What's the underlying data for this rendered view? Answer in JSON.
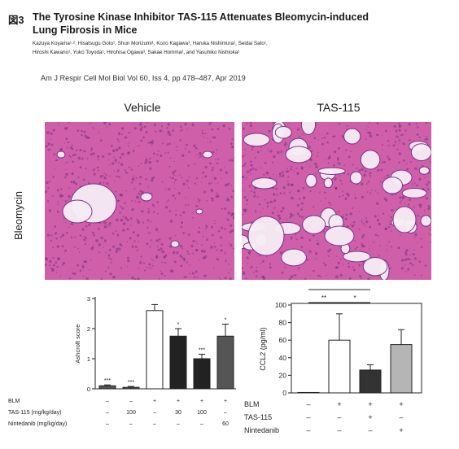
{
  "header": {
    "figure_label": "図3",
    "title_line1": "The Tyrosine Kinase Inhibitor TAS-115 Attenuates Bleomycin-induced",
    "title_line2": "Lung Fibrosis in Mice",
    "authors_line1": "Kazuya Koyama¹·², Hisatsugu Goto¹, Shun Morizumi¹, Kozo Kagawa¹, Haruka Nishimura¹, Seidai Sato¹,",
    "authors_line2": "Hiroshi Kawano¹, Yuko Toyoda¹, Hirohisa Ogawa³, Sakae Homma², and Yasuhiko Nishioka¹",
    "citation": "Am J Respir Cell Mol Biol Vol 60, Iss 4, pp 478–487, Apr 2019"
  },
  "micrographs": {
    "col_vehicle": "Vehicle",
    "col_tas": "TAS-115",
    "row_label": "Bleomycin",
    "tissue_color": "#cf5fa8",
    "nuclei_color": "#7a2e86",
    "background_color": "#f6eef4"
  },
  "chart_data": [
    {
      "type": "bar",
      "ylabel": "Ashcroft score",
      "ylim": [
        0,
        3
      ],
      "yticks": [
        "0",
        "1",
        "2",
        "3"
      ],
      "values": [
        0.1,
        0.05,
        2.6,
        1.75,
        1.0,
        1.75
      ],
      "errors": [
        0.03,
        0.03,
        0.2,
        0.25,
        0.15,
        0.4
      ],
      "fills": [
        "#555555",
        "#555555",
        "#ffffff",
        "#222222",
        "#222222",
        "#555555"
      ],
      "sig": [
        "***",
        "***",
        "",
        "*",
        "***",
        "*"
      ],
      "conditions": [
        {
          "label": "BLM",
          "values": [
            "–",
            "–",
            "+",
            "+",
            "+",
            "+"
          ]
        },
        {
          "label": "TAS-115 (mg/kg/day)",
          "values": [
            "–",
            "100",
            "–",
            "30",
            "100",
            "–"
          ]
        },
        {
          "label": "Nintedanib (mg/kg/day)",
          "values": [
            "–",
            "–",
            "–",
            "–",
            "–",
            "60"
          ]
        }
      ]
    },
    {
      "type": "bar",
      "ylabel": "CCL2 (pg/ml)",
      "ylim": [
        0,
        100
      ],
      "yticks": [
        "0",
        "20",
        "40",
        "60",
        "80",
        "100"
      ],
      "values": [
        0.5,
        60,
        26,
        55
      ],
      "errors": [
        0,
        30,
        6,
        17
      ],
      "fills": [
        "#ffffff",
        "#ffffff",
        "#333333",
        "#b5b5b5"
      ],
      "brackets": [
        {
          "from": 0,
          "to": 1,
          "label": "**",
          "level": 0
        },
        {
          "from": 1,
          "to": 2,
          "label": "*",
          "level": 0
        },
        {
          "from": 0,
          "to": 2,
          "label": "***",
          "level": 1
        }
      ],
      "conditions": [
        {
          "label": "BLM",
          "values": [
            "–",
            "+",
            "+",
            "+"
          ]
        },
        {
          "label": "TAS-115",
          "values": [
            "–",
            "–",
            "+",
            "–"
          ]
        },
        {
          "label": "Nintedanib",
          "values": [
            "–",
            "–",
            "–",
            "+"
          ]
        }
      ]
    }
  ]
}
